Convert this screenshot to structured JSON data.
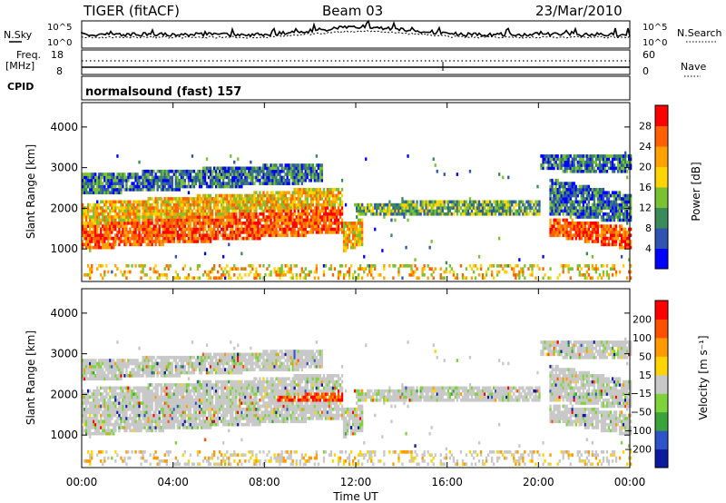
{
  "header": {
    "title": "TIGER (fitACF)",
    "beam": "Beam 03",
    "date": "23/Mar/2010"
  },
  "top_panels": {
    "nsky_label": "N.Sky",
    "nsearch_label": "N.Search",
    "freq_label_1": "Freq.",
    "freq_label_2": "[MHz]",
    "nave_label": "Nave",
    "cpid_label": "CPID",
    "cpid_text": "normalsound (fast) 157",
    "noise_left_ticks": [
      "10^5",
      "10^0"
    ],
    "noise_right_ticks": [
      "10^5",
      "10^0"
    ],
    "freq_left_ticks": [
      "18",
      "8"
    ],
    "nave_right_ticks": [
      "60",
      "0"
    ]
  },
  "chart_data": [
    {
      "type": "heatmap",
      "name": "power",
      "ylabel": "Slant Range [km]",
      "ylim": [
        200,
        4600
      ],
      "yticks": [
        "1000",
        "2000",
        "3000",
        "4000"
      ],
      "colorbar_label": "Power [dB]",
      "colorbar_ticks": [
        "4",
        "8",
        "12",
        "16",
        "20",
        "24",
        "28"
      ],
      "colorbar_colors": [
        "#0000ff",
        "#2f55b0",
        "#3a8a5a",
        "#7ac232",
        "#ffd400",
        "#ffa200",
        "#ff6000",
        "#ff0000"
      ]
    },
    {
      "type": "heatmap",
      "name": "velocity",
      "ylabel": "Slant Range [km]",
      "ylim": [
        200,
        4600
      ],
      "yticks": [
        "1000",
        "2000",
        "3000",
        "4000"
      ],
      "colorbar_label": "Velocity [m s⁻¹]",
      "colorbar_ticks": [
        "200",
        "100",
        "50",
        "15",
        "−15",
        "−50",
        "−100",
        "−200"
      ],
      "colorbar_colors": [
        "#0b1a9e",
        "#2e52c8",
        "#3aa33a",
        "#7fd33a",
        "#c8c8c8",
        "#ffd400",
        "#ff9a00",
        "#ff5000",
        "#ff0000"
      ]
    }
  ],
  "x_axis": {
    "ticks": [
      "00:00",
      "04:00",
      "08:00",
      "12:00",
      "16:00",
      "20:00",
      "00:00"
    ],
    "label": "Time UT"
  }
}
